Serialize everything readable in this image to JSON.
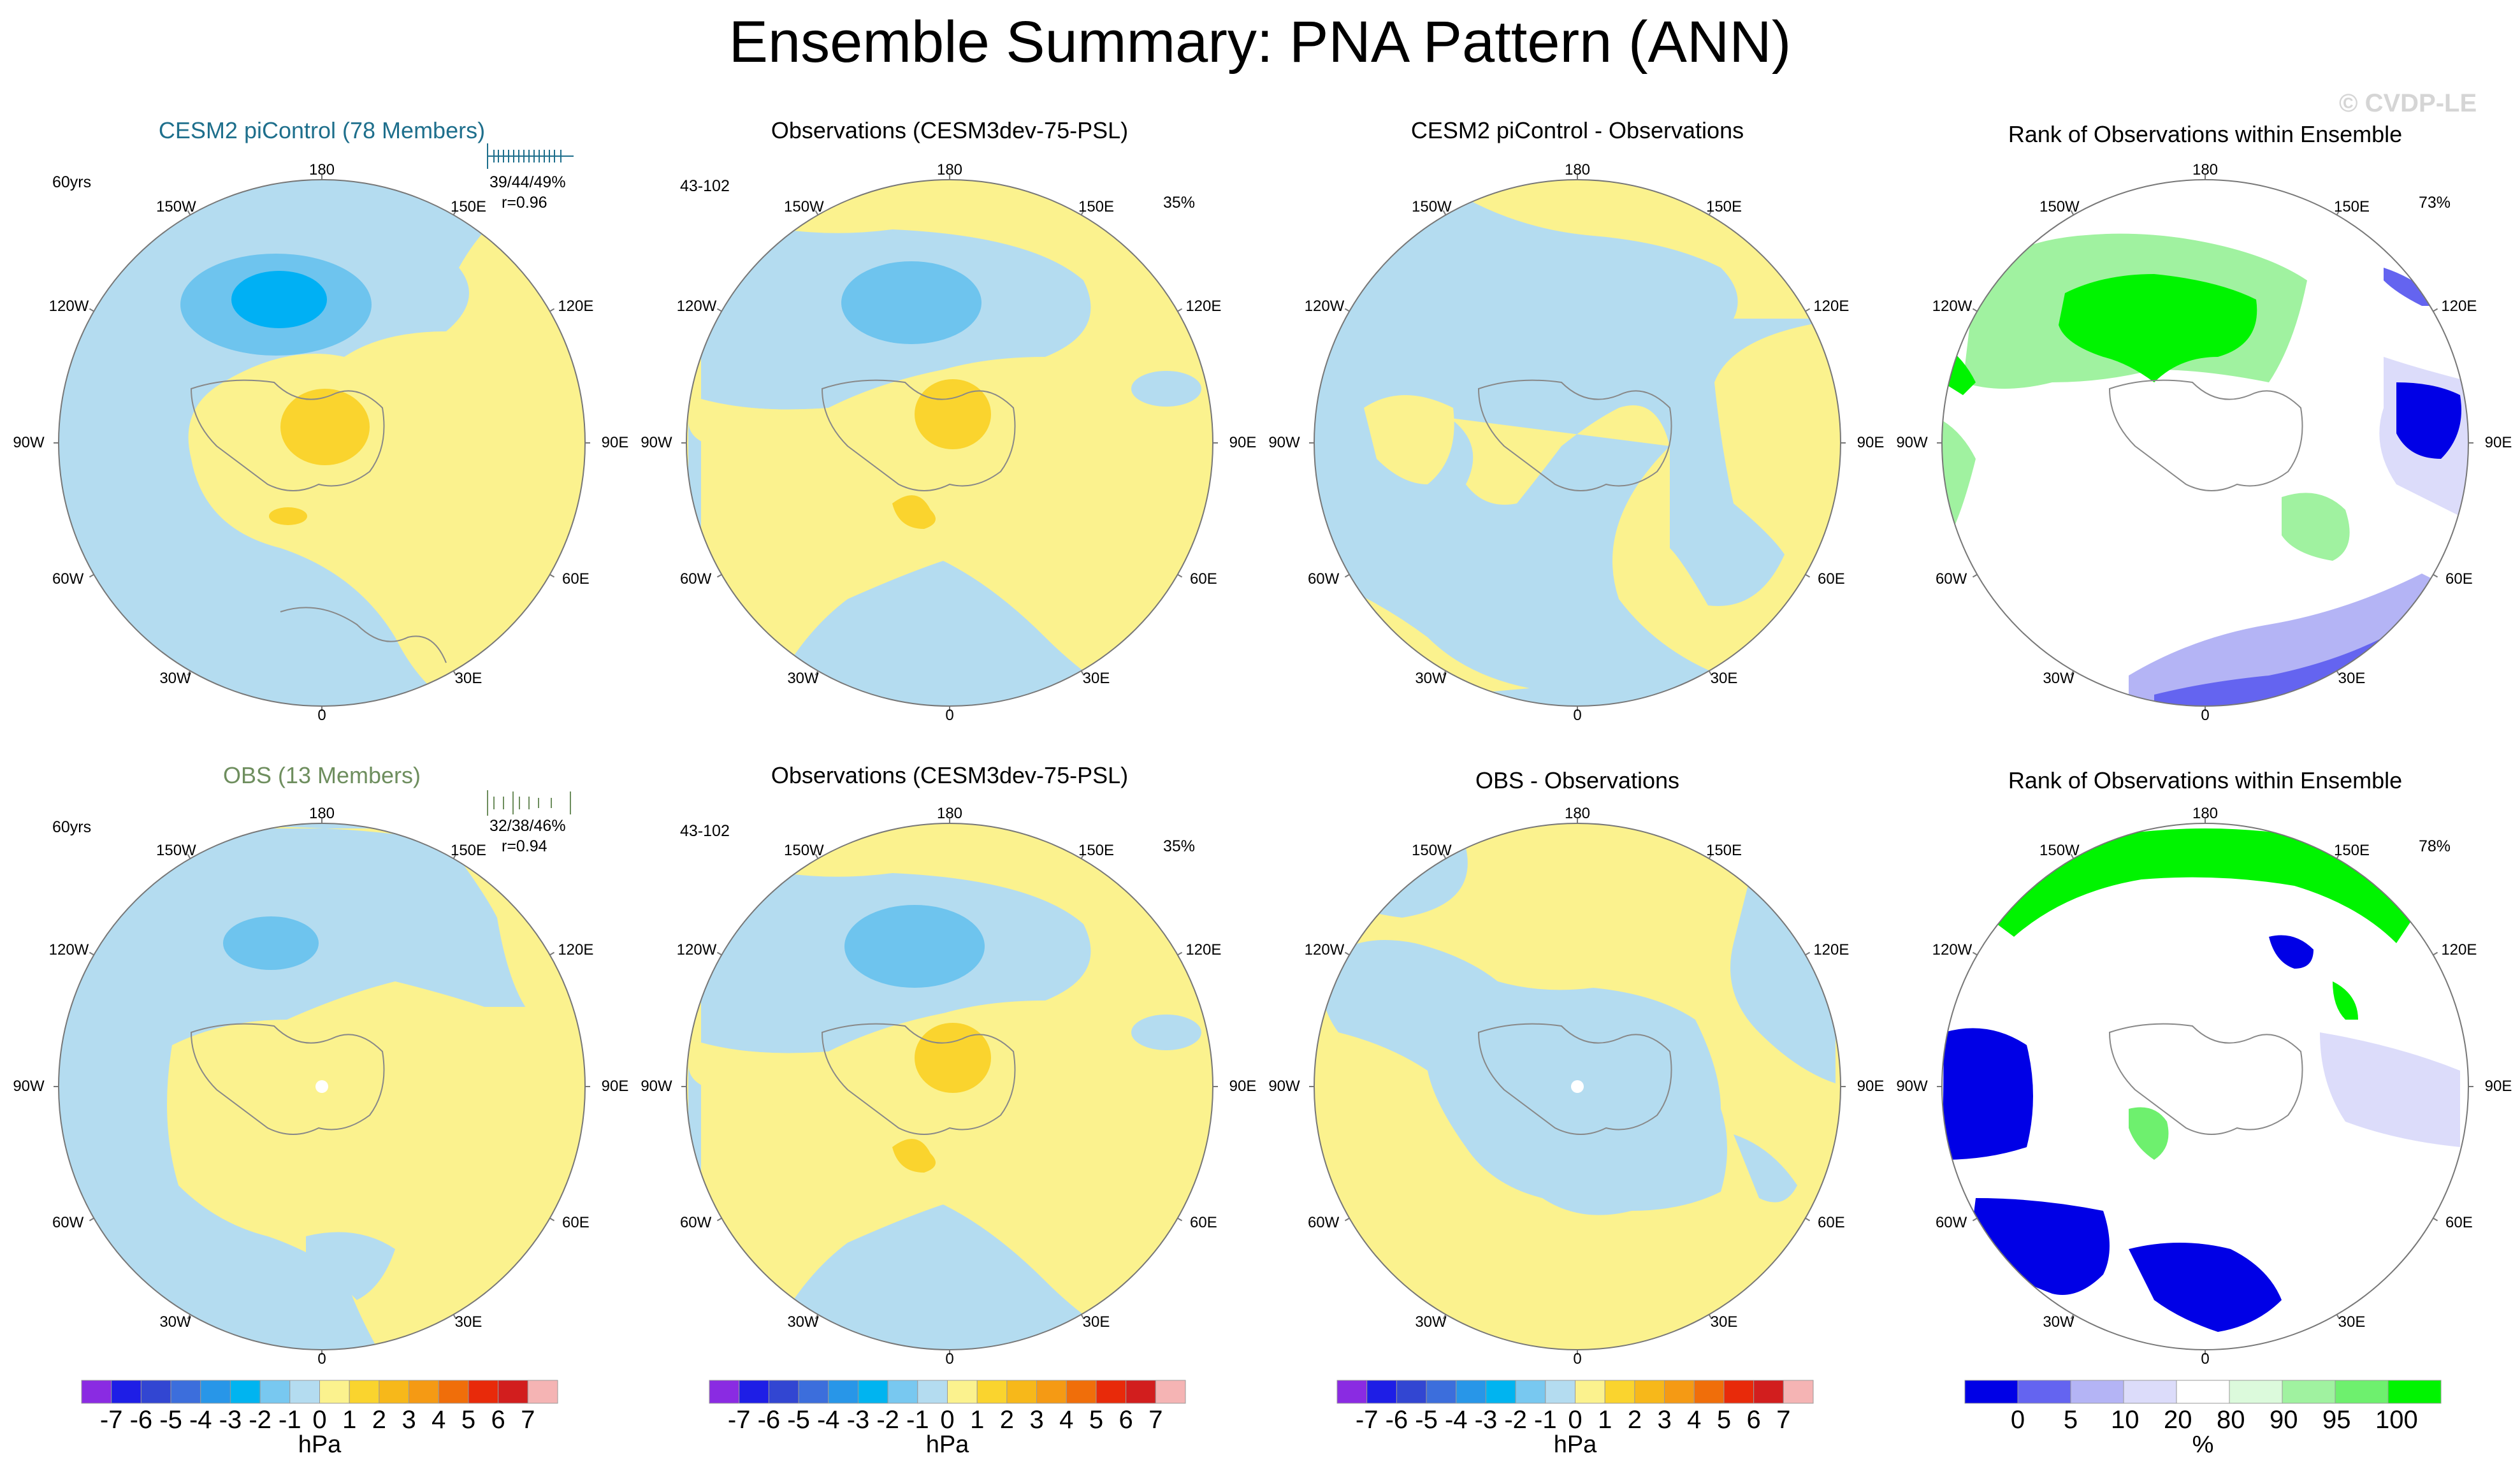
{
  "title": "Ensemble Summary: PNA Pattern (ANN)",
  "watermark": "© CVDP-LE",
  "colors": {
    "blue_light": "#b4dcf0",
    "blue_mid": "#6ec4ee",
    "blue_strong": "#00b0f4",
    "yellow_light": "#fbf28e",
    "yellow_mid": "#fad42e",
    "orange": "#f7b81a",
    "rank_green": "#00f400",
    "rank_green_light": "#a0f2a0",
    "rank_blue": "#0000e6",
    "rank_blue_light": "#dcdcfa",
    "cesm_title": "#1e6f8c",
    "obs_title": "#6e8e5e"
  },
  "longitude_labels": [
    "180",
    "150E",
    "120E",
    "90E",
    "60E",
    "30E",
    "0",
    "30W",
    "60W",
    "90W",
    "120W",
    "150W"
  ],
  "panels": {
    "r1c1": {
      "title": "CESM2 piControl (78 Members)",
      "left": "60yrs",
      "right1": "39/44/49%",
      "right2": "r=0.96"
    },
    "r1c2": {
      "title": "Observations (CESM3dev-75-PSL)",
      "left": "43-102",
      "right1": "35%"
    },
    "r1c3": {
      "title": "CESM2 piControl - Observations"
    },
    "r1c4": {
      "title": "Rank of Observations within Ensemble",
      "right1": "73%"
    },
    "r2c1": {
      "title": "OBS (13 Members)",
      "left": "60yrs",
      "right1": "32/38/46%",
      "right2": "r=0.94"
    },
    "r2c2": {
      "title": "Observations (CESM3dev-75-PSL)",
      "left": "43-102",
      "right1": "35%"
    },
    "r2c3": {
      "title": "OBS - Observations"
    },
    "r2c4": {
      "title": "Rank of Observations within Ensemble",
      "right1": "78%"
    }
  },
  "colorbar_hpa": {
    "labels": [
      "-7",
      "-6",
      "-5",
      "-4",
      "-3",
      "-2",
      "-1",
      "0",
      "1",
      "2",
      "3",
      "4",
      "5",
      "6",
      "7"
    ],
    "unit": "hPa",
    "colors": [
      "#8a2be2",
      "#1e1ee6",
      "#3246d2",
      "#3c6edc",
      "#2896e8",
      "#00b4f0",
      "#78c8f0",
      "#b4dcf0",
      "#fbf28e",
      "#fad42e",
      "#f7b81a",
      "#f59a14",
      "#f06e0a",
      "#e82a0a",
      "#d21e1e",
      "#f5b4b4"
    ]
  },
  "colorbar_rank": {
    "labels": [
      "0",
      "5",
      "10",
      "20",
      "80",
      "90",
      "95",
      "100"
    ],
    "unit": "%",
    "colors": [
      "#0000e6",
      "#6464f0",
      "#b4b4f5",
      "#dcdcfa",
      "#ffffff",
      "#dcfadc",
      "#a0f2a0",
      "#6ef06e",
      "#00f400"
    ]
  }
}
